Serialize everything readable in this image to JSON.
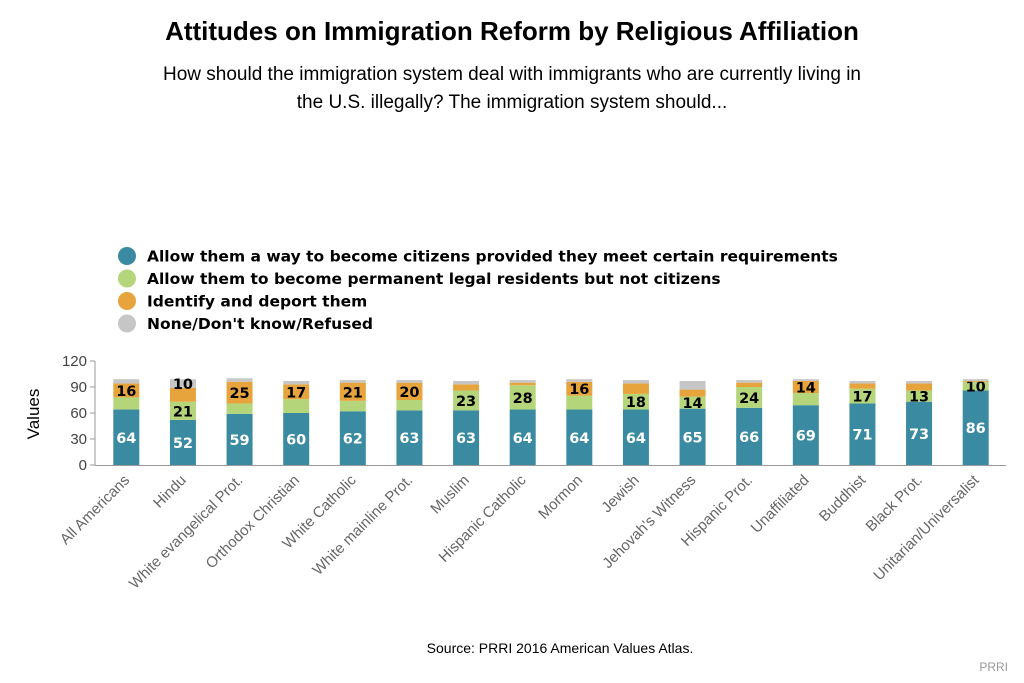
{
  "chart_data": {
    "type": "bar",
    "stacked": true,
    "title": "Attitudes on Immigration Reform by Religious Affiliation",
    "subtitle_lines": [
      "How should the immigration system deal with immigrants who are currently living in",
      "the U.S. illegally? The immigration system should..."
    ],
    "ylabel": "Values",
    "ylim": [
      0,
      120
    ],
    "yticks": [
      "0",
      "30",
      "60",
      "90",
      "120"
    ],
    "grid": false,
    "legend_position": "top-left",
    "categories": [
      "All Americans",
      "Hindu",
      "White evangelical Prot.",
      "Orthodox Christian",
      "White Catholic",
      "White mainline Prot.",
      "Muslim",
      "Hispanic Catholic",
      "Mormon",
      "Jewish",
      "Jehovah's Witness",
      "Hispanic Prot.",
      "Unaffiliated",
      "Buddhist",
      "Black Prot.",
      "Unitarian/Universalist"
    ],
    "series": [
      {
        "name": "Allow them a way to become citizens provided they meet certain requirements",
        "color": "#3a8aa1",
        "values": [
          64,
          52,
          59,
          60,
          62,
          63,
          63,
          64,
          64,
          64,
          65,
          66,
          69,
          71,
          73,
          86
        ],
        "labels": [
          "64",
          "52",
          "59",
          "60",
          "62",
          "63",
          "63",
          "64",
          "64",
          "64",
          "65",
          "66",
          "69",
          "71",
          "73",
          "86"
        ]
      },
      {
        "name": "Allow them to become permanent legal residents but not citizens",
        "color": "#b5d57b",
        "values": [
          14,
          21,
          12,
          16,
          12,
          12,
          23,
          28,
          16,
          18,
          14,
          24,
          14,
          17,
          13,
          10
        ],
        "labels": [
          "",
          "21",
          "",
          "",
          "",
          "",
          "23",
          "28",
          "",
          "18",
          "14",
          "24",
          "",
          "17",
          "13",
          "10"
        ]
      },
      {
        "name": "Identify and deport them",
        "color": "#e8a43c",
        "values": [
          16,
          16,
          25,
          17,
          21,
          20,
          7,
          3,
          16,
          12,
          8,
          5,
          14,
          6,
          8,
          1
        ],
        "labels": [
          "16",
          "",
          "25",
          "17",
          "21",
          "20",
          "",
          "",
          "16",
          "",
          "",
          "",
          "14",
          "",
          "",
          ""
        ]
      },
      {
        "name": "None/Don't know/Refused",
        "color": "#c6c6c6",
        "values": [
          5,
          10,
          4,
          4,
          3,
          3,
          4,
          3,
          3,
          4,
          10,
          3,
          2,
          3,
          3,
          2
        ],
        "labels": [
          "",
          "10",
          "",
          "",
          "",
          "",
          "",
          "",
          "",
          "",
          "",
          "",
          "",
          "",
          "",
          ""
        ]
      }
    ]
  },
  "source": "Source: PRRI 2016 American Values Atlas.",
  "credit": "PRRI"
}
